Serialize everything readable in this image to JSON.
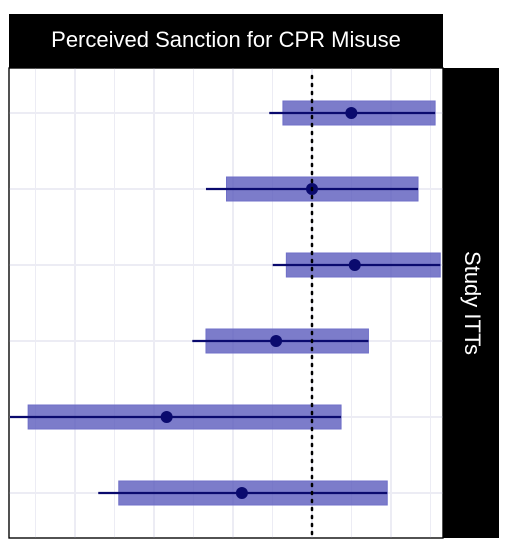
{
  "chart_data": {
    "type": "forest",
    "title": "Perceived Sanction for CPR Misuse",
    "facet_label": "Study ITTs",
    "xlim": [
      -1.0,
      1.1
    ],
    "reference_line": 0,
    "grid": true,
    "rows": [
      {
        "estimate": 0.23,
        "inner": [
          -0.17,
          0.72
        ],
        "outer": [
          -0.25,
          0.72
        ]
      },
      {
        "estimate": 0.0,
        "inner": [
          -0.5,
          0.62
        ],
        "outer": [
          -0.62,
          0.62
        ]
      },
      {
        "estimate": 0.25,
        "inner": [
          -0.15,
          0.75
        ],
        "outer": [
          -0.23,
          0.75
        ]
      },
      {
        "estimate": -0.21,
        "inner": [
          -0.62,
          0.33
        ],
        "outer": [
          -0.7,
          0.33
        ]
      },
      {
        "estimate": -0.85,
        "inner": [
          -1.66,
          0.17
        ],
        "outer": [
          -1.82,
          0.17
        ]
      },
      {
        "estimate": -0.41,
        "inner": [
          -1.13,
          0.44
        ],
        "outer": [
          -1.25,
          0.44
        ]
      }
    ],
    "colors": {
      "band": "#5b5bbd",
      "band_opacity": 0.8,
      "line": "#0a0a6e",
      "point": "#0a0a6e",
      "reference": "#000000",
      "strip_background": "#000000",
      "strip_text": "#ffffff"
    }
  }
}
